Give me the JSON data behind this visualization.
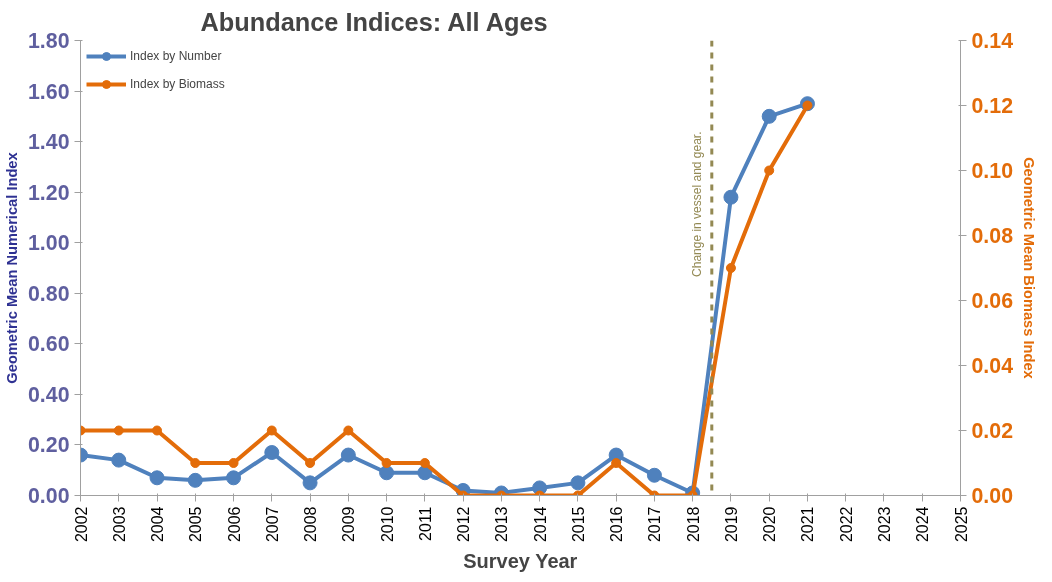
{
  "chart_data": {
    "type": "line",
    "title": "Abundance Indices:  All Ages",
    "xlabel": "Survey Year",
    "ylabel": "Geometric Mean Numerical Index",
    "y2label": "Geometric Mean Biomass Index",
    "x": [
      2002,
      2003,
      2004,
      2005,
      2006,
      2007,
      2008,
      2009,
      2010,
      2011,
      2012,
      2013,
      2014,
      2015,
      2016,
      2017,
      2018,
      2019,
      2020,
      2021
    ],
    "series": [
      {
        "name": "Index by Number",
        "color": "#4f81bd",
        "values": [
          0.16,
          0.14,
          0.07,
          0.06,
          0.07,
          0.17,
          0.05,
          0.16,
          0.09,
          0.09,
          0.02,
          0.01,
          0.03,
          0.05,
          0.16,
          0.08,
          0.01,
          1.18,
          1.5,
          1.55
        ]
      },
      {
        "name": "Index by Biomass",
        "color": "#e36c09",
        "axis": "y2",
        "values": [
          0.02,
          0.02,
          0.02,
          0.01,
          0.01,
          0.02,
          0.01,
          0.02,
          0.01,
          0.01,
          0,
          0,
          0,
          0,
          0.01,
          0,
          0,
          0.07,
          0.1,
          0.12
        ]
      }
    ],
    "xlim": [
      2002,
      2025
    ],
    "xticks": [
      2002,
      2003,
      2004,
      2005,
      2006,
      2007,
      2008,
      2009,
      2010,
      2011,
      2012,
      2013,
      2014,
      2015,
      2016,
      2017,
      2018,
      2019,
      2020,
      2021,
      2022,
      2023,
      2024,
      2025
    ],
    "ylim": [
      0,
      1.8
    ],
    "yticks": [
      {
        "value": 0,
        "label": "0.00"
      },
      {
        "value": 0.2,
        "label": "0.20"
      },
      {
        "value": 0.4,
        "label": "0.40"
      },
      {
        "value": 0.6,
        "label": "0.60"
      },
      {
        "value": 0.8,
        "label": "0.80"
      },
      {
        "value": 1.0,
        "label": "1.00"
      },
      {
        "value": 1.2,
        "label": "1.20"
      },
      {
        "value": 1.4,
        "label": "1.40"
      },
      {
        "value": 1.6,
        "label": "1.60"
      },
      {
        "value": 1.8,
        "label": "1.80"
      }
    ],
    "y2lim": [
      0,
      0.14
    ],
    "y2ticks": [
      {
        "value": 0,
        "label": "0.00"
      },
      {
        "value": 0.02,
        "label": "0.02"
      },
      {
        "value": 0.04,
        "label": "0.04"
      },
      {
        "value": 0.06,
        "label": "0.06"
      },
      {
        "value": 0.08,
        "label": "0.08"
      },
      {
        "value": 0.1,
        "label": "0.10"
      },
      {
        "value": 0.12,
        "label": "0.12"
      },
      {
        "value": 0.14,
        "label": "0.14"
      }
    ],
    "ref_lines": [
      {
        "axis": "x",
        "value": 2018.5,
        "label": "Change in vessel and gear.",
        "color": "#938953",
        "line_style": "dashed"
      }
    ],
    "legend": "top left",
    "grid": false,
    "marker": "circle",
    "line_style": "solid"
  }
}
